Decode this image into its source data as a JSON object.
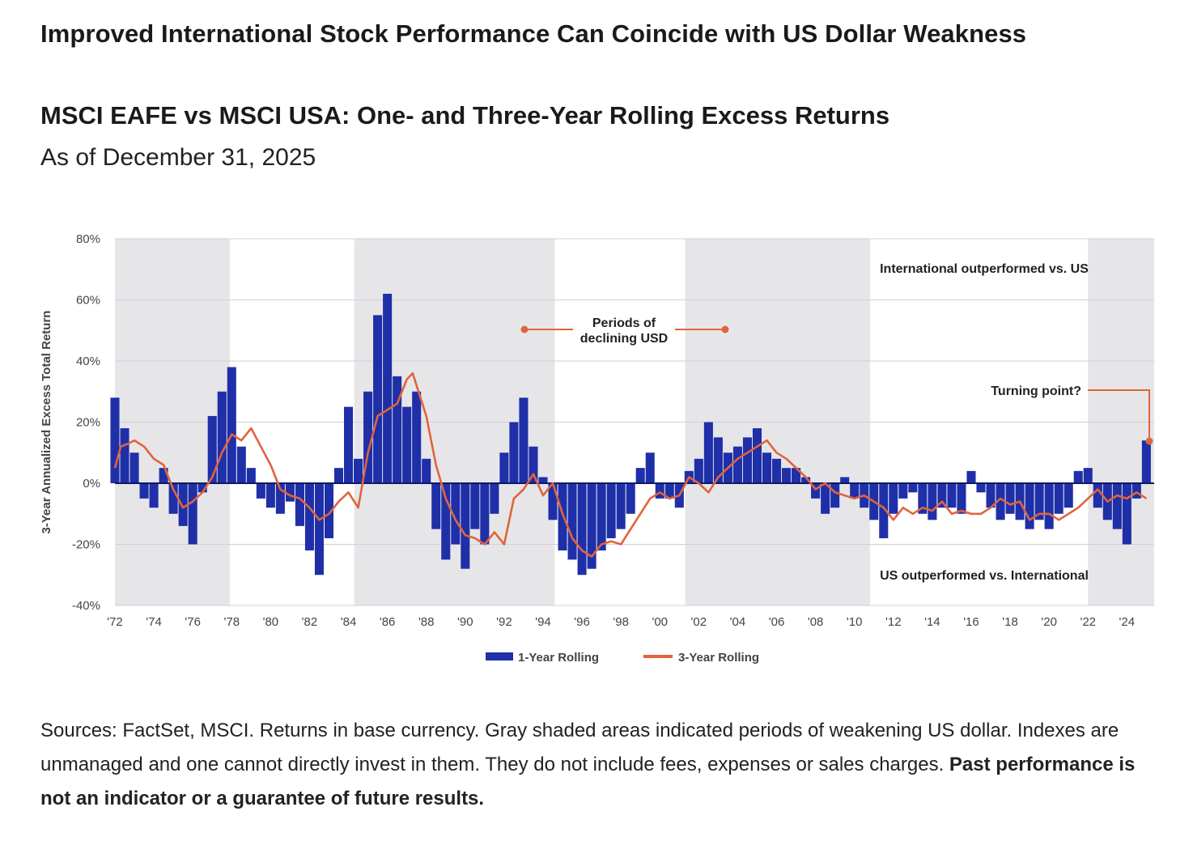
{
  "header": {
    "headline": "Improved International Stock Performance Can Coincide with US Dollar Weakness",
    "subtitle": "MSCI EAFE vs MSCI USA: One- and Three-Year Rolling Excess Returns",
    "as_of": "As of December 31, 2025"
  },
  "footnote": {
    "text": "Sources: FactSet, MSCI. Returns in base currency. Gray shaded areas indicated periods of weakening US dollar. Indexes are unmanaged and one  cannot directly invest in them. They do not include fees, expenses or sales charges.",
    "bold": "Past performance is not an indicator or a guarantee of future results."
  },
  "chart_data": {
    "type": "bar",
    "ylabel": "3-Year Annualized Excess Total Return",
    "xlabel": "",
    "ylim": [
      -40,
      80
    ],
    "xlim": [
      1972,
      2025.4
    ],
    "y_ticks": [
      80,
      60,
      40,
      20,
      0,
      -20,
      -40
    ],
    "y_tick_labels": [
      "80%",
      "60%",
      "40%",
      "20%",
      "0%",
      "-20%",
      "-40%"
    ],
    "x_ticks": [
      1972,
      1974,
      1976,
      1978,
      1980,
      1982,
      1984,
      1986,
      1988,
      1990,
      1992,
      1994,
      1996,
      1998,
      2000,
      2002,
      2004,
      2006,
      2008,
      2010,
      2012,
      2014,
      2016,
      2018,
      2020,
      2022,
      2024
    ],
    "x_tick_labels": [
      "'72",
      "'74",
      "'76",
      "'78",
      "'80",
      "'82",
      "'84",
      "'86",
      "'88",
      "'90",
      "'92",
      "'94",
      "'96",
      "'98",
      "'00",
      "'02",
      "'04",
      "'06",
      "'08",
      "'10",
      "'12",
      "'14",
      "'16",
      "'18",
      "'20",
      "'22",
      "'24"
    ],
    "shaded_periods": [
      [
        1972,
        1977.9
      ],
      [
        1984.3,
        1994.6
      ],
      [
        2001.3,
        2010.8
      ],
      [
        2022,
        2025.4
      ]
    ],
    "series": [
      {
        "name": "1-Year Rolling",
        "style": "bars",
        "color": "#1f2fa8",
        "x": [
          1972.0,
          1972.5,
          1973.0,
          1973.5,
          1974.0,
          1974.5,
          1975.0,
          1975.5,
          1976.0,
          1976.5,
          1977.0,
          1977.5,
          1978.0,
          1978.5,
          1979.0,
          1979.5,
          1980.0,
          1980.5,
          1981.0,
          1981.5,
          1982.0,
          1982.5,
          1983.0,
          1983.5,
          1984.0,
          1984.5,
          1985.0,
          1985.5,
          1986.0,
          1986.5,
          1987.0,
          1987.5,
          1988.0,
          1988.5,
          1989.0,
          1989.5,
          1990.0,
          1990.5,
          1991.0,
          1991.5,
          1992.0,
          1992.5,
          1993.0,
          1993.5,
          1994.0,
          1994.5,
          1995.0,
          1995.5,
          1996.0,
          1996.5,
          1997.0,
          1997.5,
          1998.0,
          1998.5,
          1999.0,
          1999.5,
          2000.0,
          2000.5,
          2001.0,
          2001.5,
          2002.0,
          2002.5,
          2003.0,
          2003.5,
          2004.0,
          2004.5,
          2005.0,
          2005.5,
          2006.0,
          2006.5,
          2007.0,
          2007.5,
          2008.0,
          2008.5,
          2009.0,
          2009.5,
          2010.0,
          2010.5,
          2011.0,
          2011.5,
          2012.0,
          2012.5,
          2013.0,
          2013.5,
          2014.0,
          2014.5,
          2015.0,
          2015.5,
          2016.0,
          2016.5,
          2017.0,
          2017.5,
          2018.0,
          2018.5,
          2019.0,
          2019.5,
          2020.0,
          2020.5,
          2021.0,
          2021.5,
          2022.0,
          2022.5,
          2023.0,
          2023.5,
          2024.0,
          2024.5,
          2025.0
        ],
        "values": [
          28,
          18,
          10,
          -5,
          -8,
          5,
          -10,
          -14,
          -20,
          -3,
          22,
          30,
          38,
          12,
          5,
          -5,
          -8,
          -10,
          -6,
          -14,
          -22,
          -30,
          -18,
          5,
          25,
          8,
          30,
          55,
          62,
          35,
          25,
          30,
          8,
          -15,
          -25,
          -20,
          -28,
          -15,
          -20,
          -10,
          10,
          20,
          28,
          12,
          2,
          -12,
          -22,
          -25,
          -30,
          -28,
          -22,
          -18,
          -15,
          -10,
          5,
          10,
          -5,
          -5,
          -8,
          4,
          8,
          20,
          15,
          10,
          12,
          15,
          18,
          10,
          8,
          5,
          5,
          2,
          -5,
          -10,
          -8,
          2,
          -5,
          -8,
          -12,
          -18,
          -10,
          -5,
          -3,
          -10,
          -12,
          -8,
          -8,
          -10,
          4,
          -3,
          -8,
          -12,
          -10,
          -12,
          -15,
          -12,
          -15,
          -10,
          -8,
          4,
          5,
          -8,
          -12,
          -15,
          -20,
          -5,
          14
        ]
      },
      {
        "name": "3-Year Rolling",
        "style": "line",
        "color": "#e0643c",
        "x": [
          1972.0,
          1972.3,
          1972.7,
          1973.0,
          1973.5,
          1974.0,
          1974.5,
          1975.0,
          1975.5,
          1976.0,
          1976.5,
          1977.0,
          1977.5,
          1978.0,
          1978.5,
          1979.0,
          1979.5,
          1980.0,
          1980.5,
          1981.0,
          1981.5,
          1982.0,
          1982.5,
          1983.0,
          1983.5,
          1984.0,
          1984.5,
          1985.0,
          1985.5,
          1986.0,
          1986.5,
          1987.0,
          1987.3,
          1987.7,
          1988.0,
          1988.5,
          1989.0,
          1989.5,
          1990.0,
          1990.5,
          1991.0,
          1991.5,
          1992.0,
          1992.5,
          1993.0,
          1993.5,
          1994.0,
          1994.5,
          1995.0,
          1995.5,
          1996.0,
          1996.5,
          1997.0,
          1997.5,
          1998.0,
          1998.5,
          1999.0,
          1999.5,
          2000.0,
          2000.5,
          2001.0,
          2001.5,
          2002.0,
          2002.5,
          2003.0,
          2003.5,
          2004.0,
          2004.5,
          2005.0,
          2005.5,
          2006.0,
          2006.5,
          2007.0,
          2007.5,
          2008.0,
          2008.5,
          2009.0,
          2009.5,
          2010.0,
          2010.5,
          2011.0,
          2011.5,
          2012.0,
          2012.5,
          2013.0,
          2013.5,
          2014.0,
          2014.5,
          2015.0,
          2015.5,
          2016.0,
          2016.5,
          2017.0,
          2017.5,
          2018.0,
          2018.5,
          2019.0,
          2019.5,
          2020.0,
          2020.5,
          2021.0,
          2021.5,
          2022.0,
          2022.5,
          2023.0,
          2023.5,
          2024.0,
          2024.5,
          2025.0
        ],
        "values": [
          5,
          12,
          13,
          14,
          12,
          8,
          6,
          -2,
          -8,
          -6,
          -3,
          2,
          10,
          16,
          14,
          18,
          12,
          6,
          -2,
          -4,
          -5,
          -8,
          -12,
          -10,
          -6,
          -3,
          -8,
          10,
          22,
          24,
          26,
          34,
          36,
          28,
          22,
          6,
          -5,
          -12,
          -17,
          -18,
          -20,
          -16,
          -20,
          -5,
          -2,
          3,
          -4,
          0,
          -10,
          -18,
          -22,
          -24,
          -20,
          -19,
          -20,
          -15,
          -10,
          -5,
          -3,
          -5,
          -4,
          2,
          0,
          -3,
          2,
          5,
          8,
          10,
          12,
          14,
          10,
          8,
          5,
          2,
          -2,
          0,
          -3,
          -4,
          -5,
          -4,
          -6,
          -8,
          -12,
          -8,
          -10,
          -8,
          -9,
          -6,
          -10,
          -9,
          -10,
          -10,
          -8,
          -5,
          -7,
          -6,
          -12,
          -10,
          -10,
          -12,
          -10,
          -8,
          -5,
          -2,
          -6,
          -4,
          -5,
          -3,
          -5
        ]
      }
    ],
    "annotations": {
      "periods_label": "Periods of declining USD",
      "turning_point": "Turning point?",
      "top_region": "International outperformed vs. US",
      "bottom_region": "US outperformed vs. International"
    },
    "legend": {
      "position": "bottom-center",
      "items": [
        "1-Year Rolling",
        "3-Year Rolling"
      ]
    },
    "grid": true
  }
}
